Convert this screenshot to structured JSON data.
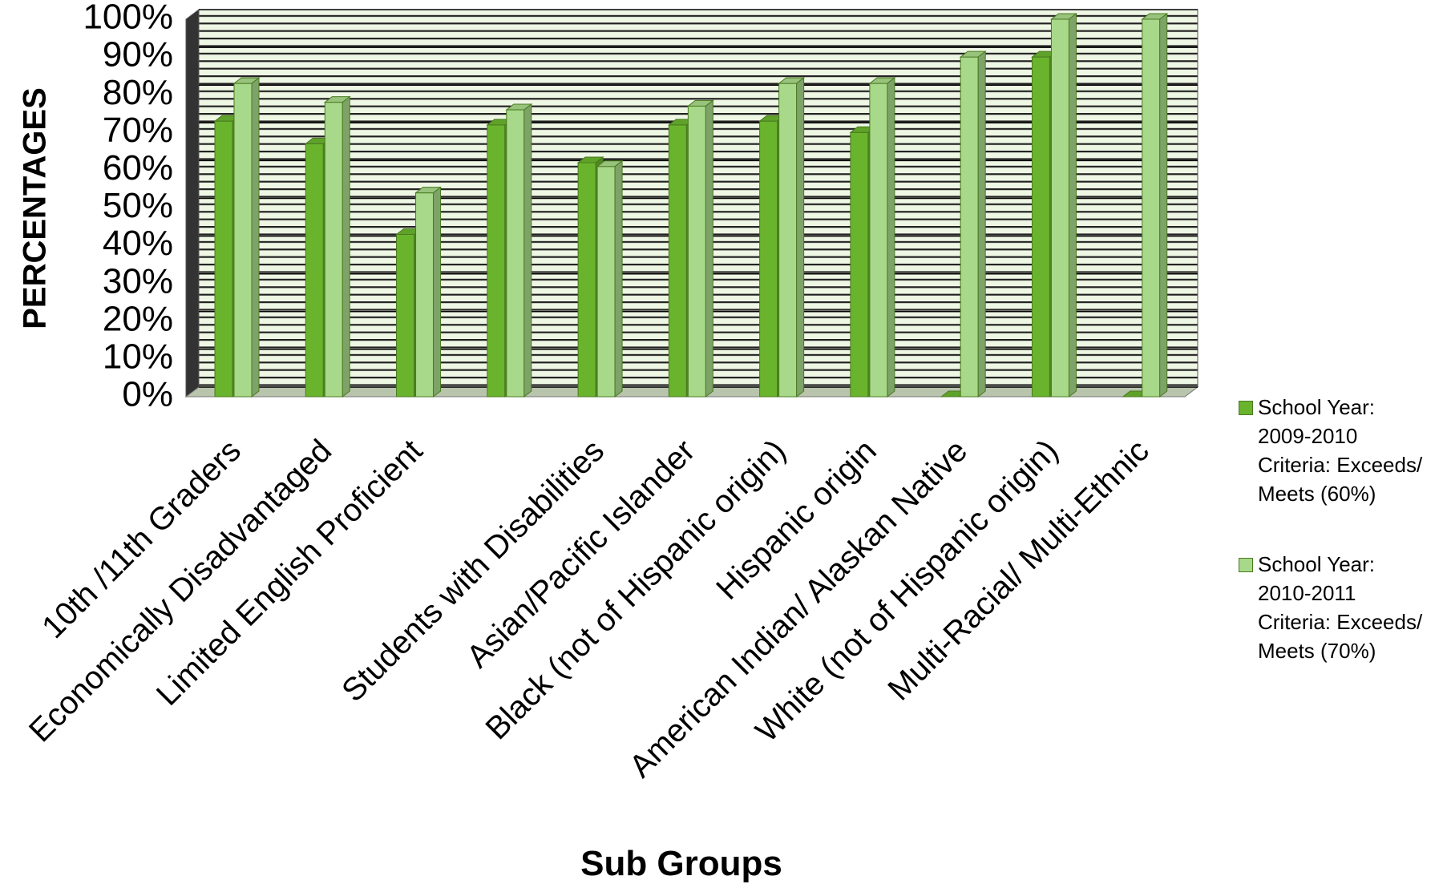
{
  "chart_data": {
    "type": "bar3d",
    "y_label": "PERCENTAGES",
    "x_label": "Sub Groups",
    "categories": [
      "10th /11th Graders",
      "Economically Disadvantaged",
      "Limited English Proficient",
      null,
      "Students with Disabilities",
      "Asian/Pacific Islander",
      "Black (not of Hispanic origin)",
      "Hispanic origin",
      "American Indian/ Alaskan Native",
      "White (not of Hispanic origin)",
      "Multi-Racial/ Multi-Ethnic"
    ],
    "series": [
      {
        "name": "School Year: 2009-2010 Criteria: Exceeds/ Meets (60%)",
        "color": "#6ab42d",
        "values": [
          73,
          67,
          43,
          72,
          62,
          72,
          73,
          70,
          0,
          90,
          0
        ]
      },
      {
        "name": "School Year: 2010-2011 Criteria: Exceeds/ Meets (70%)",
        "color": "#a8d98a",
        "values": [
          83,
          78,
          54,
          76,
          61,
          77,
          83,
          83,
          90,
          100,
          100
        ]
      }
    ],
    "ylim": [
      0,
      100
    ],
    "yticks": [
      {
        "value": 0,
        "label": "0%"
      },
      {
        "value": 10,
        "label": "10%"
      },
      {
        "value": 20,
        "label": "20%"
      },
      {
        "value": 30,
        "label": "30%"
      },
      {
        "value": 40,
        "label": "40%"
      },
      {
        "value": 50,
        "label": "50%"
      },
      {
        "value": 60,
        "label": "60%"
      },
      {
        "value": 70,
        "label": "70%"
      },
      {
        "value": 80,
        "label": "80%"
      },
      {
        "value": 90,
        "label": "90%"
      },
      {
        "value": 100,
        "label": "100%"
      }
    ],
    "grid": true,
    "legend": "right"
  }
}
